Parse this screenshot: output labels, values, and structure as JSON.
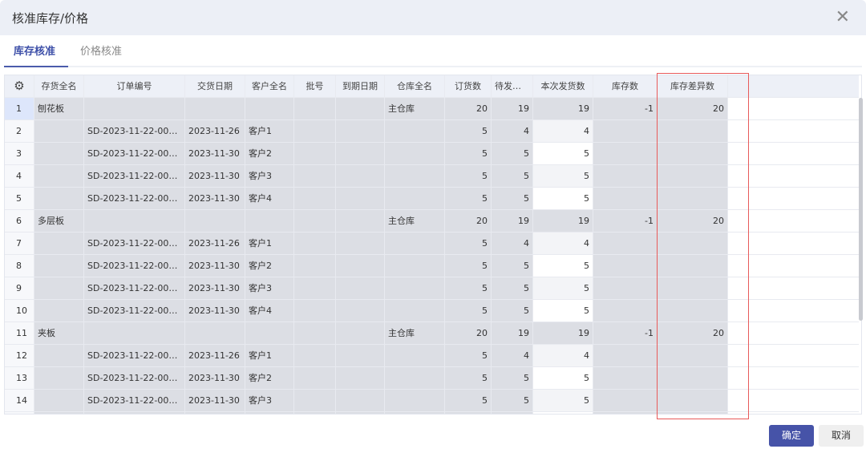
{
  "dialog": {
    "title": "核准库存/价格",
    "close_icon": "close-icon"
  },
  "tabs": [
    {
      "label": "库存核准",
      "active": true
    },
    {
      "label": "价格核准",
      "active": false
    }
  ],
  "table": {
    "settings_icon": "gear-icon",
    "columns": [
      "存货全名",
      "订单编号",
      "交货日期",
      "客户全名",
      "批号",
      "到期日期",
      "仓库全名",
      "订货数",
      "待发货数",
      "本次发货数",
      "库存数",
      "库存差异数"
    ],
    "rows": [
      [
        "1",
        "刨花板",
        "",
        "",
        "",
        "",
        "",
        "主仓库",
        "20",
        "19",
        "19",
        "-1",
        "20"
      ],
      [
        "2",
        "",
        "SD-2023-11-22-000...",
        "2023-11-26",
        "客户1",
        "",
        "",
        "",
        "5",
        "4",
        "4",
        "",
        ""
      ],
      [
        "3",
        "",
        "SD-2023-11-22-000...",
        "2023-11-30",
        "客户2",
        "",
        "",
        "",
        "5",
        "5",
        "5",
        "",
        ""
      ],
      [
        "4",
        "",
        "SD-2023-11-22-000...",
        "2023-11-30",
        "客户3",
        "",
        "",
        "",
        "5",
        "5",
        "5",
        "",
        ""
      ],
      [
        "5",
        "",
        "SD-2023-11-22-000...",
        "2023-11-30",
        "客户4",
        "",
        "",
        "",
        "5",
        "5",
        "5",
        "",
        ""
      ],
      [
        "6",
        "多层板",
        "",
        "",
        "",
        "",
        "",
        "主仓库",
        "20",
        "19",
        "19",
        "-1",
        "20"
      ],
      [
        "7",
        "",
        "SD-2023-11-22-000...",
        "2023-11-26",
        "客户1",
        "",
        "",
        "",
        "5",
        "4",
        "4",
        "",
        ""
      ],
      [
        "8",
        "",
        "SD-2023-11-22-000...",
        "2023-11-30",
        "客户2",
        "",
        "",
        "",
        "5",
        "5",
        "5",
        "",
        ""
      ],
      [
        "9",
        "",
        "SD-2023-11-22-000...",
        "2023-11-30",
        "客户3",
        "",
        "",
        "",
        "5",
        "5",
        "5",
        "",
        ""
      ],
      [
        "10",
        "",
        "SD-2023-11-22-000...",
        "2023-11-30",
        "客户4",
        "",
        "",
        "",
        "5",
        "5",
        "5",
        "",
        ""
      ],
      [
        "11",
        "夹板",
        "",
        "",
        "",
        "",
        "",
        "主仓库",
        "20",
        "19",
        "19",
        "-1",
        "20"
      ],
      [
        "12",
        "",
        "SD-2023-11-22-000...",
        "2023-11-26",
        "客户1",
        "",
        "",
        "",
        "5",
        "4",
        "4",
        "",
        ""
      ],
      [
        "13",
        "",
        "SD-2023-11-22-000...",
        "2023-11-30",
        "客户2",
        "",
        "",
        "",
        "5",
        "5",
        "5",
        "",
        ""
      ],
      [
        "14",
        "",
        "SD-2023-11-22-000...",
        "2023-11-30",
        "客户3",
        "",
        "",
        "",
        "5",
        "5",
        "5",
        "",
        ""
      ]
    ],
    "highlight_color": "#e85a5a"
  },
  "footer": {
    "ok_label": "确定",
    "cancel_label": "取消",
    "ok_color": "#4653a8"
  }
}
